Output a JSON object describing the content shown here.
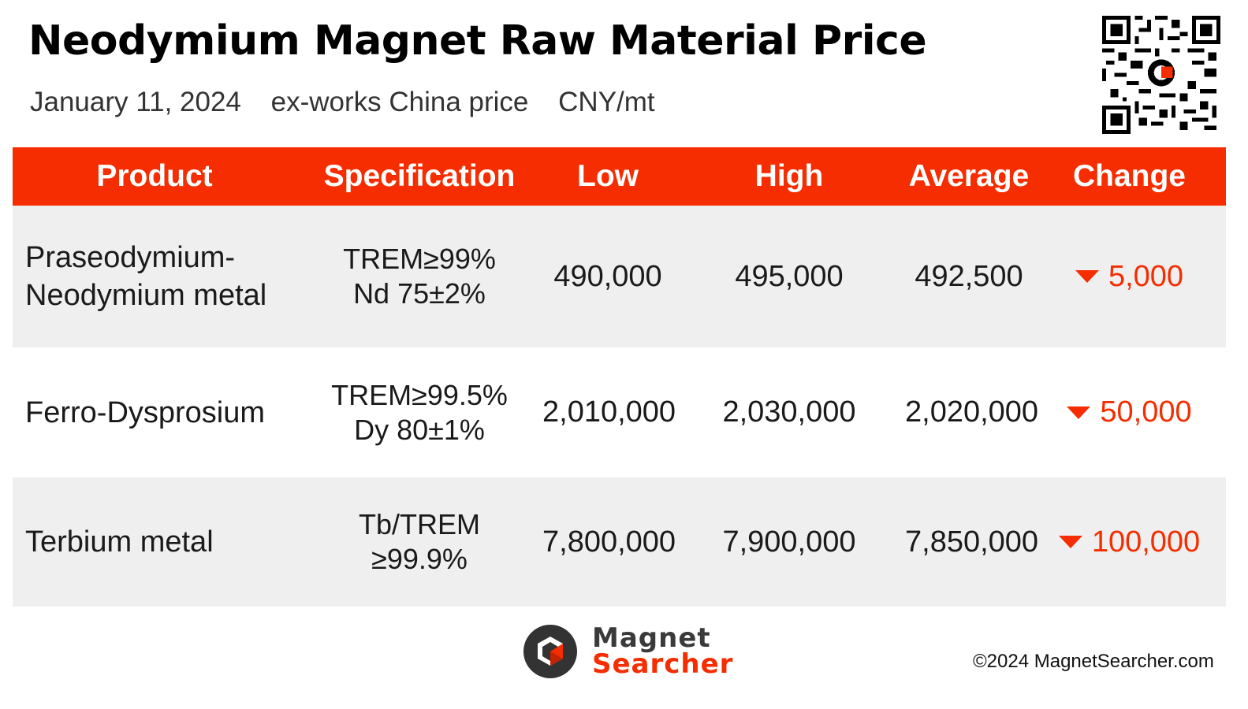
{
  "header": {
    "title": "Neodymium Magnet Raw Material Price",
    "date": "January 11, 2024",
    "basis": "ex-works China price",
    "unit": "CNY/mt"
  },
  "table": {
    "columns": [
      "Product",
      "Specification",
      "Low",
      "High",
      "Average",
      "Change"
    ],
    "rows": [
      {
        "product": [
          "Praseodymium-",
          "Neodymium metal"
        ],
        "spec": [
          "TREM≥99%",
          "Nd 75±2%"
        ],
        "low": "490,000",
        "high": "495,000",
        "average": "492,500",
        "change": "5,000",
        "direction_icon": "triangle-down-icon"
      },
      {
        "product": [
          "Ferro-Dysprosium"
        ],
        "spec": [
          "TREM≥99.5%",
          "Dy 80±1%"
        ],
        "low": "2,010,000",
        "high": "2,030,000",
        "average": "2,020,000",
        "change": "50,000",
        "direction_icon": "triangle-down-icon"
      },
      {
        "product": [
          "Terbium metal"
        ],
        "spec": [
          "Tb/TREM",
          "≥99.9%"
        ],
        "low": "7,800,000",
        "high": "7,900,000",
        "average": "7,850,000",
        "change": "100,000",
        "direction_icon": "triangle-down-icon"
      }
    ]
  },
  "brand": {
    "line1": "Magnet",
    "line2": "Searcher",
    "logo_icon": "magnet-searcher-logo-icon"
  },
  "footer": {
    "copyright": "©2024 MagnetSearcher.com"
  },
  "colors": {
    "accent": "#f52d00",
    "row_shade": "#efefef",
    "text": "#1a1a1a"
  }
}
